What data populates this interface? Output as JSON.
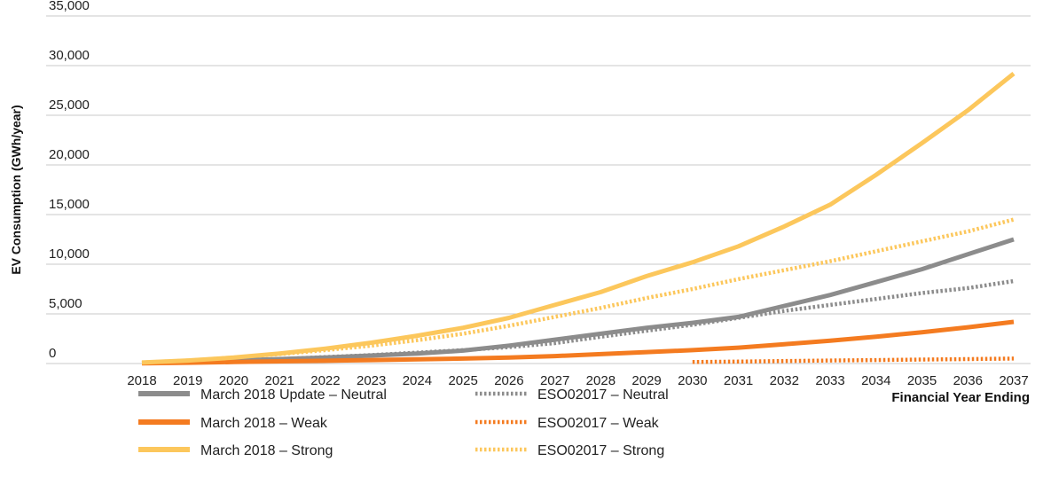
{
  "chart_data": {
    "type": "line",
    "xlabel": "Financial Year Ending",
    "ylabel": "EV Consumption (GWh/year)",
    "ylim": [
      0,
      35000
    ],
    "yticks": [
      0,
      5000,
      10000,
      15000,
      20000,
      25000,
      30000,
      35000
    ],
    "ytick_labels": [
      "0",
      "5,000",
      "10,000",
      "15,000",
      "20,000",
      "25,000",
      "30,000",
      "35,000"
    ],
    "x": [
      2018,
      2019,
      2020,
      2021,
      2022,
      2023,
      2024,
      2025,
      2026,
      2027,
      2028,
      2029,
      2030,
      2031,
      2032,
      2033,
      2034,
      2035,
      2036,
      2037
    ],
    "x_labels": [
      "2018",
      "2019",
      "2020",
      "2021",
      "2022",
      "2023",
      "2024",
      "2025",
      "2026",
      "2027",
      "2028",
      "2029",
      "2030",
      "2031",
      "2032",
      "2033",
      "2034",
      "2035",
      "2036",
      "2037"
    ],
    "grid": "horizontal",
    "legend_position": "bottom",
    "series": [
      {
        "name": "March 2018 Update – Neutral",
        "color": "#8c8c8c",
        "style": "solid",
        "x": [
          2018,
          2019,
          2020,
          2021,
          2022,
          2023,
          2024,
          2025,
          2026,
          2027,
          2028,
          2029,
          2030,
          2031,
          2032,
          2033,
          2034,
          2035,
          2036,
          2037
        ],
        "values": [
          50,
          150,
          300,
          450,
          600,
          800,
          1000,
          1300,
          1800,
          2400,
          3000,
          3600,
          4100,
          4700,
          5800,
          6900,
          8200,
          9500,
          11000,
          12500
        ]
      },
      {
        "name": "March 2018 – Weak",
        "color": "#f47b20",
        "style": "solid",
        "x": [
          2018,
          2019,
          2020,
          2021,
          2022,
          2023,
          2024,
          2025,
          2026,
          2027,
          2028,
          2029,
          2030,
          2031,
          2032,
          2033,
          2034,
          2035,
          2036,
          2037
        ],
        "values": [
          30,
          80,
          150,
          220,
          280,
          350,
          420,
          500,
          600,
          750,
          950,
          1150,
          1350,
          1600,
          1950,
          2300,
          2700,
          3150,
          3650,
          4200
        ]
      },
      {
        "name": "March 2018 – Strong",
        "color": "#fcc75c",
        "style": "solid",
        "x": [
          2018,
          2019,
          2020,
          2021,
          2022,
          2023,
          2024,
          2025,
          2026,
          2027,
          2028,
          2029,
          2030,
          2031,
          2032,
          2033,
          2034,
          2035,
          2036,
          2037
        ],
        "values": [
          100,
          300,
          600,
          1000,
          1500,
          2100,
          2800,
          3600,
          4600,
          5900,
          7200,
          8800,
          10200,
          11800,
          13800,
          16000,
          19000,
          22200,
          25500,
          29200
        ]
      },
      {
        "name": "ESO02017 – Neutral",
        "color": "#8c8c8c",
        "style": "dotted",
        "x": [
          2018,
          2019,
          2020,
          2021,
          2022,
          2023,
          2024,
          2025,
          2026,
          2027,
          2028,
          2029,
          2030,
          2031,
          2032,
          2033,
          2034,
          2035,
          2036,
          2037
        ],
        "values": [
          50,
          150,
          300,
          450,
          650,
          850,
          1100,
          1350,
          1650,
          2050,
          2700,
          3300,
          3900,
          4600,
          5300,
          5900,
          6500,
          7100,
          7600,
          8300
        ]
      },
      {
        "name": "ESO02017 – Weak",
        "color": "#f47b20",
        "style": "dotted",
        "x": [
          2030,
          2031,
          2032,
          2033,
          2034,
          2035,
          2036,
          2037
        ],
        "values": [
          150,
          200,
          250,
          300,
          350,
          400,
          450,
          500
        ]
      },
      {
        "name": "ESO02017 – Strong",
        "color": "#fcc75c",
        "style": "dotted",
        "x": [
          2018,
          2019,
          2020,
          2021,
          2022,
          2023,
          2024,
          2025,
          2026,
          2027,
          2028,
          2029,
          2030,
          2031,
          2032,
          2033,
          2034,
          2035,
          2036,
          2037
        ],
        "values": [
          100,
          300,
          600,
          950,
          1350,
          1800,
          2350,
          3000,
          3800,
          4700,
          5600,
          6600,
          7500,
          8500,
          9400,
          10300,
          11300,
          12300,
          13300,
          14500
        ]
      }
    ]
  }
}
